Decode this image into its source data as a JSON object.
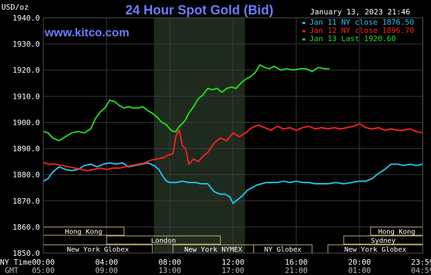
{
  "chart_data": {
    "type": "line",
    "title": "24 Hour Spot Gold (Bid)",
    "unit_label": "USD/oz",
    "watermark": "www.kitco.com",
    "timestamp": "January 13, 2023 21:46",
    "ylim": [
      1850,
      1940
    ],
    "y_ticks": [
      "1940.0",
      "1930.0",
      "1920.0",
      "1910.0",
      "1900.0",
      "1890.0",
      "1880.0",
      "1870.0",
      "1860.0",
      "1850.0"
    ],
    "x_ticks_ny": [
      "00:00",
      "04:00",
      "08:00",
      "12:00",
      "16:00",
      "20:00",
      "23:59"
    ],
    "x_ticks_gmt": [
      "05:00",
      "09:00",
      "13:00",
      "17:00",
      "21:00",
      "01:00",
      "04:59"
    ],
    "x_row_labels": {
      "ny": "NY Time",
      "gmt": "GMT"
    },
    "grid": true,
    "shaded_period": [
      "07:00",
      "12:45"
    ],
    "sessions": [
      {
        "name": "Hong Kong",
        "row": 0,
        "start": 0,
        "end": 5.1
      },
      {
        "name": "Hong Kong",
        "row": 0,
        "start": 20.7,
        "end": 24
      },
      {
        "name": "London",
        "row": 1,
        "start": 4.0,
        "end": 11.2
      },
      {
        "name": "Sydney",
        "row": 1,
        "start": 19.0,
        "end": 24
      },
      {
        "name": "New York Globex",
        "row": 2,
        "start": 0,
        "end": 6.9
      },
      {
        "name": "New York NYMEX",
        "row": 2,
        "start": 8.2,
        "end": 13.3
      },
      {
        "name": "NY Globex",
        "row": 2,
        "start": 13.3,
        "end": 17.0
      },
      {
        "name": "New York Globex",
        "row": 2,
        "start": 18.0,
        "end": 24
      }
    ],
    "legend": [
      {
        "label": "Jan 11 NY close 1876.50",
        "color": "#22c4f0"
      },
      {
        "label": "Jan 12 NY close 1896.70",
        "color": "#ff2020"
      },
      {
        "label": "Jan 13 Last 1920.60",
        "color": "#22dd22"
      }
    ],
    "series": [
      {
        "name": "Jan 11",
        "color": "#22c4f0",
        "x": [
          0,
          0.3,
          0.6,
          1.0,
          1.4,
          1.8,
          2.2,
          2.6,
          3.0,
          3.4,
          3.8,
          4.2,
          4.6,
          5.0,
          5.4,
          5.8,
          6.2,
          6.6,
          7.0,
          7.3,
          7.6,
          7.8,
          8.0,
          8.4,
          8.8,
          9.2,
          9.6,
          10.0,
          10.4,
          10.8,
          11.2,
          11.5,
          11.8,
          12.0,
          12.3,
          12.6,
          12.9,
          13.2,
          13.5,
          13.8,
          14.1,
          14.4,
          14.8,
          15.2,
          15.6,
          16.0,
          16.4,
          16.8,
          17.2,
          17.6,
          18.0,
          18.5,
          19.0,
          19.5,
          20.0,
          20.4,
          20.8,
          21.2,
          21.6,
          22.0,
          22.4,
          22.8,
          23.2,
          23.6,
          23.99
        ],
        "values": [
          1877.5,
          1878.5,
          1881,
          1883,
          1882,
          1881.5,
          1882,
          1883.5,
          1884,
          1883,
          1884,
          1884.5,
          1884,
          1884.5,
          1883,
          1883.5,
          1884,
          1884.5,
          1883.5,
          1882,
          1879,
          1877.5,
          1877,
          1877,
          1877.5,
          1877,
          1877,
          1876.5,
          1876.5,
          1873.5,
          1872.5,
          1872.5,
          1871.5,
          1869,
          1870.5,
          1872,
          1874,
          1875,
          1876,
          1876.5,
          1877,
          1877,
          1877,
          1877.5,
          1877,
          1877.5,
          1877,
          1877,
          1876.5,
          1876.5,
          1876.5,
          1877,
          1876.5,
          1877,
          1877.5,
          1877.5,
          1878.5,
          1880.5,
          1882,
          1884,
          1884,
          1883.5,
          1884,
          1883.5,
          1884
        ]
      },
      {
        "name": "Jan 12",
        "color": "#ff2020",
        "x": [
          0,
          0.4,
          0.8,
          1.2,
          1.6,
          2.0,
          2.4,
          2.8,
          3.2,
          3.6,
          4.0,
          4.4,
          4.8,
          5.2,
          5.6,
          6.0,
          6.4,
          6.8,
          7.2,
          7.6,
          7.9,
          8.2,
          8.4,
          8.6,
          8.8,
          9.0,
          9.2,
          9.5,
          9.8,
          10.1,
          10.4,
          10.8,
          11.2,
          11.6,
          12.0,
          12.4,
          12.8,
          13.2,
          13.6,
          14.0,
          14.4,
          14.8,
          15.2,
          15.6,
          16.0,
          16.4,
          16.8,
          17.2,
          17.6,
          18.0,
          18.4,
          18.8,
          19.2,
          19.6,
          20.0,
          20.4,
          20.8,
          21.2,
          21.6,
          22.0,
          22.4,
          22.8,
          23.2,
          23.6,
          23.99
        ],
        "values": [
          1884.5,
          1884,
          1884,
          1883.5,
          1883,
          1882.5,
          1882,
          1881.5,
          1882,
          1882.5,
          1882,
          1882.5,
          1882.5,
          1883,
          1883.5,
          1884,
          1884.5,
          1885.5,
          1886,
          1886.5,
          1887.5,
          1888,
          1895,
          1897,
          1891,
          1890,
          1884,
          1886,
          1885,
          1887,
          1888.5,
          1892,
          1894,
          1893,
          1896,
          1894.5,
          1896,
          1898,
          1899,
          1898,
          1897,
          1898.5,
          1897.5,
          1898,
          1897,
          1898,
          1898.5,
          1897.5,
          1898,
          1897.5,
          1898,
          1897.5,
          1898,
          1898.5,
          1899.5,
          1898,
          1897.5,
          1898,
          1897,
          1897.5,
          1897,
          1897,
          1897.5,
          1896.5,
          1896
        ]
      },
      {
        "name": "Jan 13",
        "color": "#22dd22",
        "x": [
          0,
          0.3,
          0.6,
          1.0,
          1.4,
          1.8,
          2.2,
          2.6,
          3.0,
          3.3,
          3.6,
          3.9,
          4.2,
          4.5,
          4.8,
          5.1,
          5.4,
          5.7,
          6.0,
          6.3,
          6.6,
          6.9,
          7.2,
          7.5,
          7.8,
          8.0,
          8.2,
          8.4,
          8.6,
          8.8,
          9.0,
          9.2,
          9.5,
          9.8,
          10.1,
          10.4,
          10.7,
          11.0,
          11.3,
          11.6,
          11.9,
          12.2,
          12.5,
          12.8,
          13.1,
          13.4,
          13.7,
          14.0,
          14.3,
          14.6,
          15.0,
          15.4,
          15.8,
          16.2,
          16.6,
          17.0,
          17.4,
          17.8,
          18.1
        ],
        "values": [
          1896.5,
          1896,
          1894,
          1893,
          1894.5,
          1896,
          1896.5,
          1896,
          1897.5,
          1901.5,
          1904,
          1905.5,
          1908.5,
          1908,
          1906.5,
          1905.5,
          1906,
          1905.5,
          1905.5,
          1906,
          1904.5,
          1903.5,
          1902,
          1900,
          1899,
          1897.5,
          1896.5,
          1896.5,
          1898.5,
          1899.5,
          1901,
          1903.5,
          1906,
          1909,
          1910.5,
          1913,
          1912.5,
          1913,
          1911.5,
          1913,
          1913.5,
          1913,
          1915,
          1916.5,
          1917.5,
          1919,
          1922,
          1921,
          1920.5,
          1921.5,
          1920,
          1920.5,
          1920,
          1920.5,
          1920.5,
          1919.5,
          1921,
          1920.5,
          1920.5
        ]
      }
    ]
  }
}
